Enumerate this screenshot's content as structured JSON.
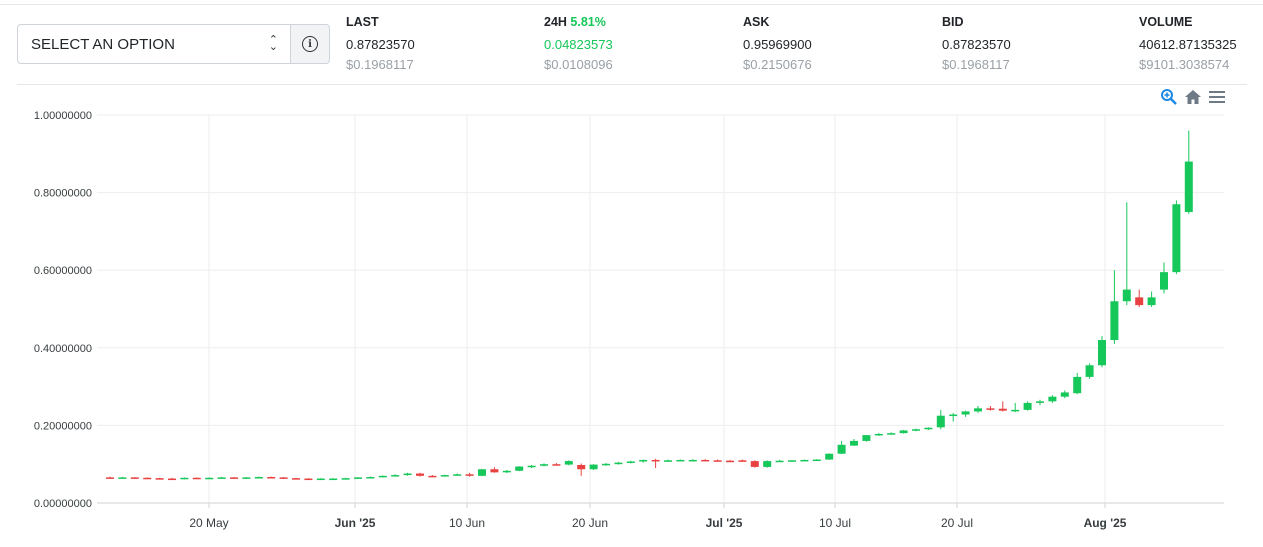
{
  "selector": {
    "label": "SELECT AN OPTION"
  },
  "stats": [
    {
      "label": "LAST",
      "pct": "",
      "value": "0.87823570",
      "usd": "$0.1968117"
    },
    {
      "label": "24H",
      "pct": "5.81%",
      "value": "0.04823573",
      "usd": "$0.0108096"
    },
    {
      "label": "ASK",
      "pct": "",
      "value": "0.95969900",
      "usd": "$0.2150676"
    },
    {
      "label": "BID",
      "pct": "",
      "value": "0.87823570",
      "usd": "$0.1968117"
    },
    {
      "label": "VOLUME",
      "pct": "",
      "value": "40612.87135325",
      "usd": "$9101.3038574"
    }
  ],
  "toolbar": {
    "zoom_icon": "zoom-in-icon",
    "home_icon": "home-icon",
    "menu_icon": "menu-icon"
  },
  "colors": {
    "up": "#16c75a",
    "down": "#e84142",
    "accent": "#1e88e5"
  },
  "chart_data": {
    "type": "candlestick",
    "ylim": [
      0,
      1
    ],
    "y_ticks": [
      "1.00000000",
      "0.80000000",
      "0.60000000",
      "0.40000000",
      "0.20000000",
      "0.00000000"
    ],
    "x_ticks": [
      {
        "day": "20 May",
        "bold": false
      },
      {
        "day": "Jun '25",
        "bold": true
      },
      {
        "day": "10 Jun",
        "bold": false
      },
      {
        "day": "20 Jun",
        "bold": false
      },
      {
        "day": "Jul '25",
        "bold": true
      },
      {
        "day": "10 Jul",
        "bold": false
      },
      {
        "day": "20 Jul",
        "bold": false
      },
      {
        "day": "Aug '25",
        "bold": true
      }
    ],
    "candles": [
      [
        0.066,
        0.068,
        0.064,
        0.065
      ],
      [
        0.065,
        0.067,
        0.064,
        0.066
      ],
      [
        0.066,
        0.067,
        0.064,
        0.065
      ],
      [
        0.065,
        0.066,
        0.063,
        0.064
      ],
      [
        0.064,
        0.065,
        0.062,
        0.063
      ],
      [
        0.063,
        0.065,
        0.061,
        0.062
      ],
      [
        0.062,
        0.066,
        0.061,
        0.065
      ],
      [
        0.065,
        0.066,
        0.063,
        0.064
      ],
      [
        0.064,
        0.066,
        0.063,
        0.065
      ],
      [
        0.065,
        0.067,
        0.064,
        0.066
      ],
      [
        0.066,
        0.067,
        0.064,
        0.065
      ],
      [
        0.065,
        0.067,
        0.064,
        0.066
      ],
      [
        0.066,
        0.068,
        0.065,
        0.067
      ],
      [
        0.067,
        0.068,
        0.065,
        0.066
      ],
      [
        0.066,
        0.067,
        0.063,
        0.064
      ],
      [
        0.064,
        0.065,
        0.062,
        0.063
      ],
      [
        0.063,
        0.064,
        0.061,
        0.062
      ],
      [
        0.062,
        0.064,
        0.061,
        0.063
      ],
      [
        0.063,
        0.064,
        0.062,
        0.063
      ],
      [
        0.063,
        0.065,
        0.062,
        0.064
      ],
      [
        0.064,
        0.067,
        0.063,
        0.066
      ],
      [
        0.066,
        0.068,
        0.064,
        0.067
      ],
      [
        0.067,
        0.071,
        0.066,
        0.07
      ],
      [
        0.07,
        0.074,
        0.068,
        0.072
      ],
      [
        0.072,
        0.078,
        0.07,
        0.076
      ],
      [
        0.076,
        0.078,
        0.068,
        0.07
      ],
      [
        0.07,
        0.072,
        0.067,
        0.069
      ],
      [
        0.069,
        0.073,
        0.068,
        0.072
      ],
      [
        0.072,
        0.076,
        0.07,
        0.074
      ],
      [
        0.074,
        0.078,
        0.068,
        0.07
      ],
      [
        0.07,
        0.088,
        0.069,
        0.087
      ],
      [
        0.087,
        0.092,
        0.078,
        0.079
      ],
      [
        0.079,
        0.085,
        0.077,
        0.083
      ],
      [
        0.083,
        0.095,
        0.082,
        0.094
      ],
      [
        0.094,
        0.098,
        0.09,
        0.096
      ],
      [
        0.096,
        0.102,
        0.094,
        0.1
      ],
      [
        0.1,
        0.103,
        0.097,
        0.099
      ],
      [
        0.099,
        0.11,
        0.097,
        0.108
      ],
      [
        0.098,
        0.102,
        0.07,
        0.087
      ],
      [
        0.087,
        0.1,
        0.085,
        0.099
      ],
      [
        0.099,
        0.103,
        0.096,
        0.101
      ],
      [
        0.101,
        0.106,
        0.099,
        0.104
      ],
      [
        0.104,
        0.109,
        0.102,
        0.107
      ],
      [
        0.107,
        0.112,
        0.104,
        0.111
      ],
      [
        0.111,
        0.114,
        0.09,
        0.109
      ],
      [
        0.109,
        0.112,
        0.107,
        0.11
      ],
      [
        0.11,
        0.112,
        0.108,
        0.111
      ],
      [
        0.111,
        0.113,
        0.109,
        0.111
      ],
      [
        0.111,
        0.113,
        0.109,
        0.11
      ],
      [
        0.11,
        0.112,
        0.108,
        0.109
      ],
      [
        0.109,
        0.111,
        0.107,
        0.108
      ],
      [
        0.11,
        0.112,
        0.106,
        0.108
      ],
      [
        0.108,
        0.11,
        0.091,
        0.093
      ],
      [
        0.093,
        0.11,
        0.091,
        0.108
      ],
      [
        0.108,
        0.111,
        0.106,
        0.109
      ],
      [
        0.109,
        0.111,
        0.107,
        0.11
      ],
      [
        0.11,
        0.112,
        0.108,
        0.111
      ],
      [
        0.111,
        0.113,
        0.109,
        0.112
      ],
      [
        0.112,
        0.128,
        0.111,
        0.127
      ],
      [
        0.127,
        0.16,
        0.126,
        0.15
      ],
      [
        0.148,
        0.165,
        0.147,
        0.16
      ],
      [
        0.16,
        0.175,
        0.158,
        0.175
      ],
      [
        0.175,
        0.18,
        0.173,
        0.178
      ],
      [
        0.178,
        0.182,
        0.176,
        0.18
      ],
      [
        0.18,
        0.188,
        0.179,
        0.187
      ],
      [
        0.187,
        0.192,
        0.185,
        0.19
      ],
      [
        0.19,
        0.195,
        0.188,
        0.194
      ],
      [
        0.195,
        0.24,
        0.19,
        0.225
      ],
      [
        0.225,
        0.232,
        0.21,
        0.228
      ],
      [
        0.228,
        0.238,
        0.222,
        0.236
      ],
      [
        0.236,
        0.25,
        0.232,
        0.244
      ],
      [
        0.244,
        0.25,
        0.238,
        0.243
      ],
      [
        0.243,
        0.262,
        0.236,
        0.238
      ],
      [
        0.238,
        0.258,
        0.234,
        0.24
      ],
      [
        0.24,
        0.262,
        0.238,
        0.258
      ],
      [
        0.258,
        0.266,
        0.252,
        0.262
      ],
      [
        0.262,
        0.278,
        0.258,
        0.274
      ],
      [
        0.274,
        0.29,
        0.27,
        0.285
      ],
      [
        0.283,
        0.335,
        0.28,
        0.325
      ],
      [
        0.325,
        0.36,
        0.32,
        0.355
      ],
      [
        0.355,
        0.43,
        0.35,
        0.42
      ],
      [
        0.42,
        0.6,
        0.41,
        0.52
      ],
      [
        0.52,
        0.775,
        0.51,
        0.55
      ],
      [
        0.53,
        0.55,
        0.505,
        0.51
      ],
      [
        0.51,
        0.545,
        0.505,
        0.53
      ],
      [
        0.55,
        0.62,
        0.54,
        0.595
      ],
      [
        0.595,
        0.78,
        0.59,
        0.77
      ],
      [
        0.75,
        0.96,
        0.745,
        0.88
      ]
    ]
  }
}
